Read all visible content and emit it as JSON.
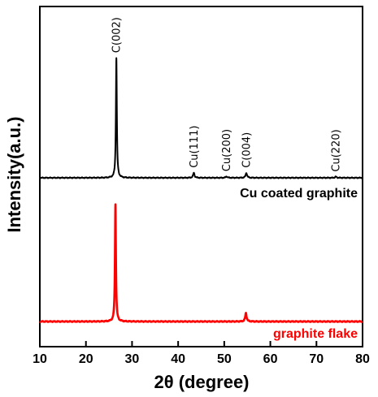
{
  "chart_data": {
    "type": "line",
    "xlabel": "2θ (degree)",
    "ylabel": "Intensity(a.u.)",
    "xlim": [
      10,
      80
    ],
    "xticks": [
      10,
      20,
      30,
      40,
      50,
      60,
      70,
      80
    ],
    "xtick_labels": [
      "10",
      "20",
      "30",
      "40",
      "50",
      "60",
      "70",
      "80"
    ],
    "yticks_shown": false,
    "grid": false,
    "series": [
      {
        "name": "Cu coated graphite",
        "color": "#000000",
        "baseline": 1.0,
        "peaks": [
          {
            "label": "C(002)",
            "x": 26.6,
            "height": 0.84
          },
          {
            "label": "Cu(111)",
            "x": 43.4,
            "height": 0.035
          },
          {
            "label": "Cu(200)",
            "x": 50.5,
            "height": 0.01
          },
          {
            "label": "C(004)",
            "x": 54.8,
            "height": 0.035
          },
          {
            "label": "Cu(220)",
            "x": 74.2,
            "height": 0.008
          }
        ]
      },
      {
        "name": "graphite flake",
        "color": "#ff0000",
        "baseline": 0.0,
        "peaks": [
          {
            "label": "",
            "x": 26.4,
            "height": 0.83
          },
          {
            "label": "",
            "x": 54.7,
            "height": 0.06
          }
        ]
      }
    ]
  }
}
